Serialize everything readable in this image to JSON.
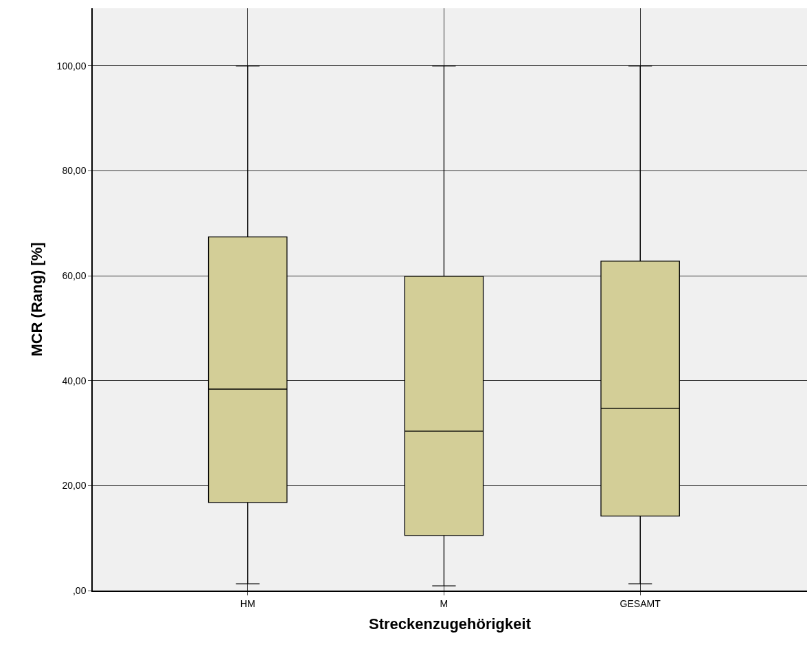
{
  "chart_data": {
    "type": "box",
    "xlabel": "Streckenzugehörigkeit",
    "ylabel": "MCR (Rang) [%]",
    "categories": [
      "HM",
      "M",
      "GESAMT"
    ],
    "boxes": [
      {
        "low": 1.3,
        "q1": 16.8,
        "median": 38.4,
        "q3": 67.4,
        "high": 100
      },
      {
        "low": 0.9,
        "q1": 10.5,
        "median": 30.4,
        "q3": 59.9,
        "high": 100
      },
      {
        "low": 1.3,
        "q1": 14.2,
        "median": 34.7,
        "q3": 62.8,
        "high": 100
      }
    ],
    "color": "#d3ce97",
    "ylim": [
      0,
      111
    ],
    "yticks": [
      {
        "value": 0,
        "label": ",00"
      },
      {
        "value": 20,
        "label": "20,00"
      },
      {
        "value": 40,
        "label": "40,00"
      },
      {
        "value": 60,
        "label": "60,00"
      },
      {
        "value": 80,
        "label": "80,00"
      },
      {
        "value": 100,
        "label": "100,00"
      }
    ],
    "grid": true
  }
}
